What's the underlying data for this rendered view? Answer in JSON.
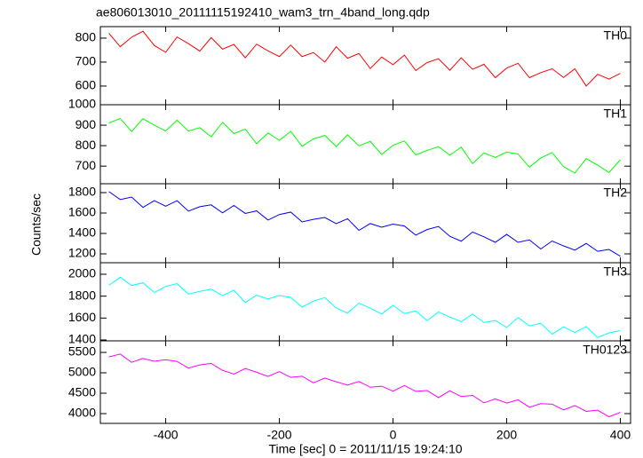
{
  "chart_data": [
    {
      "type": "line",
      "title": "ae806013010_20111115192410_wam3_trn_4band_long.qdp",
      "x": [
        -500,
        -480,
        -460,
        -440,
        -420,
        -400,
        -380,
        -360,
        -340,
        -320,
        -300,
        -280,
        -260,
        -240,
        -220,
        -200,
        -180,
        -160,
        -140,
        -120,
        -100,
        -80,
        -60,
        -40,
        -20,
        0,
        20,
        40,
        60,
        80,
        100,
        120,
        140,
        160,
        180,
        200,
        220,
        240,
        260,
        280,
        300,
        320,
        340,
        360,
        380,
        400
      ],
      "series": [
        {
          "name": "TH0",
          "color": "#ff0000",
          "values": [
            820,
            764,
            804,
            829,
            769,
            741,
            805,
            777,
            746,
            802,
            754,
            774,
            718,
            775,
            747,
            723,
            771,
            723,
            740,
            700,
            764,
            716,
            736,
            673,
            721,
            689,
            729,
            665,
            698,
            714,
            666,
            718,
            670,
            691,
            635,
            675,
            695,
            635,
            656,
            672,
            636,
            672,
            600,
            649,
            629,
            653
          ]
        }
      ],
      "xlim": [
        -515,
        418
      ],
      "xticks": [
        -400,
        -200,
        0,
        200,
        400
      ],
      "ylim": [
        522,
        848
      ],
      "yticks": [
        600,
        700,
        800
      ]
    },
    {
      "type": "line",
      "x": [
        -500,
        -480,
        -460,
        -440,
        -420,
        -400,
        -380,
        -360,
        -340,
        -320,
        -300,
        -280,
        -260,
        -240,
        -220,
        -200,
        -180,
        -160,
        -140,
        -120,
        -100,
        -80,
        -60,
        -40,
        -20,
        0,
        20,
        40,
        60,
        80,
        100,
        120,
        140,
        160,
        180,
        200,
        220,
        240,
        260,
        280,
        300,
        320,
        340,
        360,
        380,
        400
      ],
      "series": [
        {
          "name": "TH1",
          "color": "#00ff00",
          "values": [
            911,
            933,
            869,
            932,
            900,
            872,
            925,
            871,
            888,
            843,
            914,
            859,
            881,
            809,
            862,
            826,
            870,
            797,
            833,
            850,
            796,
            853,
            799,
            821,
            757,
            802,
            823,
            755,
            777,
            795,
            754,
            793,
            712,
            765,
            742,
            769,
            759,
            695,
            740,
            766,
            698,
            666,
            737,
            705,
            669,
            731
          ]
        }
      ],
      "xlim": [
        -515,
        418
      ],
      "xticks": [
        -400,
        -200,
        0,
        200,
        400
      ],
      "ylim": [
        614,
        1000
      ],
      "yticks": [
        700,
        800,
        900,
        1000
      ]
    },
    {
      "type": "line",
      "ylabel": "Counts/sec",
      "x": [
        -500,
        -480,
        -460,
        -440,
        -420,
        -400,
        -380,
        -360,
        -340,
        -320,
        -300,
        -280,
        -260,
        -240,
        -220,
        -200,
        -180,
        -160,
        -140,
        -120,
        -100,
        -80,
        -60,
        -40,
        -20,
        0,
        20,
        40,
        60,
        80,
        100,
        120,
        140,
        160,
        180,
        200,
        220,
        240,
        260,
        280,
        300,
        320,
        340,
        360,
        380,
        400
      ],
      "series": [
        {
          "name": "TH2",
          "color": "#0000ff",
          "values": [
            1810,
            1732,
            1756,
            1655,
            1721,
            1667,
            1721,
            1619,
            1662,
            1680,
            1602,
            1674,
            1596,
            1621,
            1531,
            1585,
            1609,
            1513,
            1538,
            1556,
            1496,
            1544,
            1430,
            1497,
            1461,
            1491,
            1473,
            1383,
            1438,
            1468,
            1372,
            1324,
            1414,
            1367,
            1313,
            1391,
            1313,
            1337,
            1248,
            1326,
            1278,
            1236,
            1302,
            1225,
            1243,
            1177
          ]
        }
      ],
      "xlim": [
        -515,
        418
      ],
      "xticks": [
        -400,
        -200,
        0,
        200,
        400
      ],
      "ylim": [
        1113,
        1887
      ],
      "yticks": [
        1200,
        1400,
        1600,
        1800
      ]
    },
    {
      "type": "line",
      "x": [
        -500,
        -480,
        -460,
        -440,
        -420,
        -400,
        -380,
        -360,
        -340,
        -320,
        -300,
        -280,
        -260,
        -240,
        -220,
        -200,
        -180,
        -160,
        -140,
        -120,
        -100,
        -80,
        -60,
        -40,
        -20,
        0,
        20,
        40,
        60,
        80,
        100,
        120,
        140,
        160,
        180,
        200,
        220,
        240,
        260,
        280,
        300,
        320,
        340,
        360,
        380,
        400
      ],
      "series": [
        {
          "name": "TH3",
          "color": "#00ffff",
          "values": [
            1900,
            1973,
            1897,
            1922,
            1833,
            1889,
            1914,
            1819,
            1844,
            1864,
            1805,
            1854,
            1742,
            1809,
            1774,
            1806,
            1789,
            1700,
            1755,
            1787,
            1692,
            1645,
            1737,
            1690,
            1637,
            1717,
            1640,
            1665,
            1576,
            1656,
            1609,
            1568,
            1636,
            1559,
            1578,
            1514,
            1605,
            1528,
            1553,
            1453,
            1520,
            1467,
            1523,
            1422,
            1465,
            1485
          ]
        }
      ],
      "xlim": [
        -515,
        418
      ],
      "xticks": [
        -400,
        -200,
        0,
        200,
        400
      ],
      "ylim": [
        1392,
        2105
      ],
      "yticks": [
        1400,
        1600,
        1800,
        2000
      ]
    },
    {
      "type": "line",
      "xlabel": "Time [sec] 0 = 2011/11/15 19:24:10",
      "x": [
        -500,
        -480,
        -460,
        -440,
        -420,
        -400,
        -380,
        -360,
        -340,
        -320,
        -300,
        -280,
        -260,
        -240,
        -220,
        -200,
        -180,
        -160,
        -140,
        -120,
        -100,
        -80,
        -60,
        -40,
        -20,
        0,
        20,
        40,
        60,
        80,
        100,
        120,
        140,
        160,
        180,
        200,
        220,
        240,
        260,
        280,
        300,
        320,
        340,
        360,
        380,
        400
      ],
      "series": [
        {
          "name": "TH0123",
          "color": "#ff00ff",
          "values": [
            5390,
            5458,
            5256,
            5354,
            5282,
            5320,
            5278,
            5116,
            5194,
            5232,
            5060,
            4968,
            5106,
            5014,
            4912,
            5030,
            4888,
            4916,
            4754,
            4872,
            4780,
            4698,
            4788,
            4646,
            4672,
            4550,
            4688,
            4546,
            4566,
            4392,
            4560,
            4418,
            4446,
            4264,
            4362,
            4260,
            4338,
            4156,
            4244,
            4232,
            4090,
            4198,
            4056,
            4084,
            3922,
            4030
          ]
        }
      ],
      "xlim": [
        -515,
        418
      ],
      "xticks": [
        -400,
        -200,
        0,
        200,
        400
      ],
      "ylim": [
        3761,
        5783
      ],
      "yticks": [
        4000,
        4500,
        5000,
        5500
      ]
    }
  ]
}
